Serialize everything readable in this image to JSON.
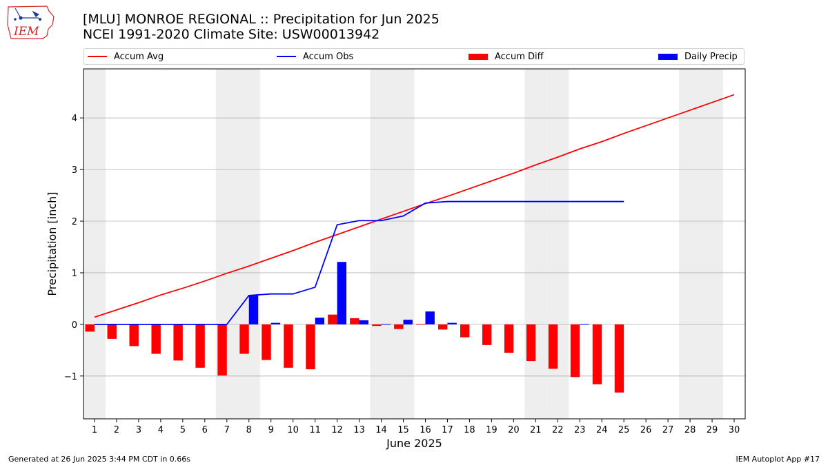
{
  "header": {
    "title_line1": "[MLU] MONROE REGIONAL :: Precipitation for Jun 2025",
    "title_line2": "NCEI 1991-2020 Climate Site: USW00013942"
  },
  "logo": {
    "text": "IEM",
    "color": "#d62728"
  },
  "legend": [
    {
      "label": "Accum Avg",
      "kind": "line",
      "color": "#ff0000"
    },
    {
      "label": "Accum Obs",
      "kind": "line",
      "color": "#0000ff"
    },
    {
      "label": "Accum Diff",
      "kind": "bar",
      "color": "#ff0000"
    },
    {
      "label": "Daily Precip",
      "kind": "bar",
      "color": "#0000ff"
    }
  ],
  "footer": {
    "left": "Generated at 26 Jun 2025 3:44 PM CDT in 0.66s",
    "right": "IEM Autoplot App #17"
  },
  "chart_data": {
    "type": "bar",
    "xlabel": "June 2025",
    "ylabel": "Precipitation [inch]",
    "xlim": [
      0.5,
      30.5
    ],
    "ylim": [
      -1.83,
      4.95
    ],
    "yticks": [
      -1,
      0,
      1,
      2,
      3,
      4
    ],
    "ytick_labels": [
      "−1",
      "0",
      "1",
      "2",
      "3",
      "4"
    ],
    "grid": true,
    "legend_position": "top",
    "weekend_shading_days": [
      1,
      7,
      8,
      14,
      15,
      21,
      22,
      28,
      29
    ],
    "weekend_shading_color": "#eeeeee",
    "categories": [
      1,
      2,
      3,
      4,
      5,
      6,
      7,
      8,
      9,
      10,
      11,
      12,
      13,
      14,
      15,
      16,
      17,
      18,
      19,
      20,
      21,
      22,
      23,
      24,
      25,
      26,
      27,
      28,
      29,
      30
    ],
    "series": [
      {
        "name": "Accum Avg",
        "kind": "line",
        "color": "#ff0000",
        "values": [
          0.14,
          0.28,
          0.42,
          0.57,
          0.7,
          0.84,
          0.99,
          1.13,
          1.28,
          1.43,
          1.59,
          1.74,
          1.89,
          2.04,
          2.19,
          2.34,
          2.48,
          2.63,
          2.78,
          2.93,
          3.09,
          3.24,
          3.4,
          3.54,
          3.7,
          3.85,
          4.0,
          4.15,
          4.3,
          4.45
        ]
      },
      {
        "name": "Accum Obs",
        "kind": "line",
        "color": "#0000ff",
        "values": [
          0.0,
          0.0,
          0.0,
          0.0,
          0.0,
          0.0,
          0.0,
          0.56,
          0.59,
          0.59,
          0.72,
          1.93,
          2.01,
          2.01,
          2.1,
          2.35,
          2.38,
          2.38,
          2.38,
          2.38,
          2.38,
          2.38,
          2.38,
          2.38,
          2.38,
          null,
          null,
          null,
          null,
          null
        ]
      },
      {
        "name": "Accum Diff",
        "kind": "bar",
        "color": "#ff0000",
        "offset": "left",
        "values": [
          -0.14,
          -0.28,
          -0.42,
          -0.57,
          -0.7,
          -0.84,
          -0.99,
          -0.57,
          -0.69,
          -0.84,
          -0.87,
          0.19,
          0.12,
          -0.03,
          -0.09,
          0.01,
          -0.1,
          -0.25,
          -0.4,
          -0.55,
          -0.71,
          -0.86,
          -1.02,
          -1.16,
          -1.32,
          null,
          null,
          null,
          null,
          null
        ]
      },
      {
        "name": "Daily Precip",
        "kind": "bar",
        "color": "#0000ff",
        "offset": "right",
        "values": [
          0,
          0,
          0,
          0,
          0,
          0,
          0,
          0.56,
          0.03,
          0,
          0.13,
          1.21,
          0.08,
          0.01,
          0.09,
          0.25,
          0.03,
          0,
          0,
          0,
          0,
          0,
          0.01,
          0,
          0,
          null,
          null,
          null,
          null,
          null
        ]
      }
    ]
  }
}
